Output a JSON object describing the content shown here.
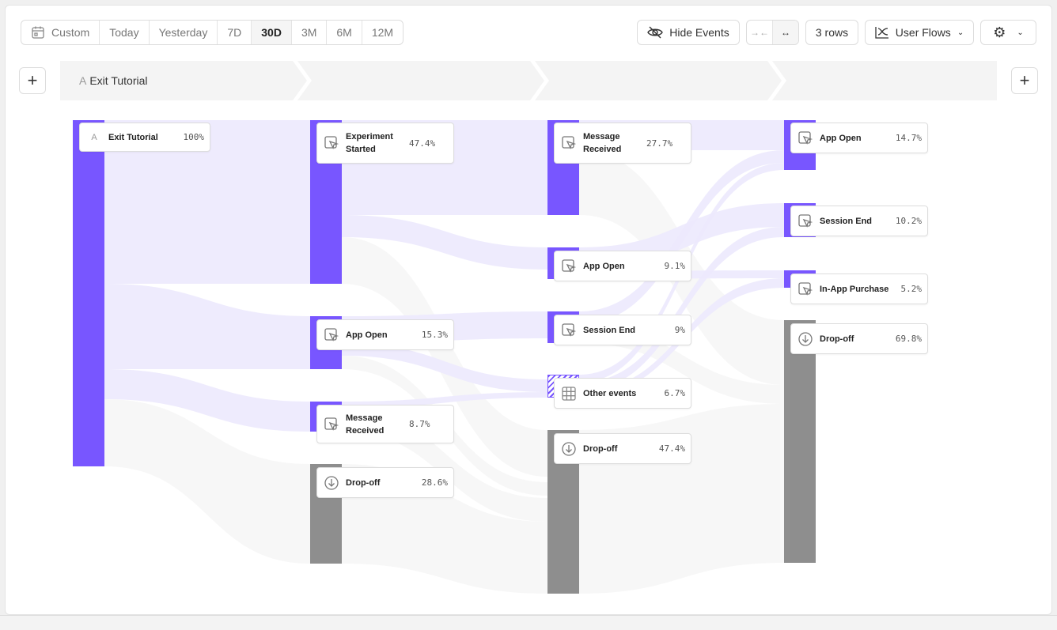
{
  "toolbar": {
    "date_ranges": [
      "Custom",
      "Today",
      "Yesterday",
      "7D",
      "30D",
      "3M",
      "6M",
      "12M"
    ],
    "selected_range": "30D",
    "hide_events": "Hide Events",
    "rows": "3 rows",
    "view": "User Flows"
  },
  "steps": {
    "first_prefix": "A",
    "first": "Exit Tutorial"
  },
  "colors": {
    "accent": "#7856ff",
    "dropoff": "#8e8e8e",
    "flow": "#ece9fd"
  },
  "columns": [
    [
      {
        "name": "Exit Tutorial",
        "pct": "100%",
        "icon": "letter-a-icon"
      }
    ],
    [
      {
        "name": "Experiment Started",
        "pct": "47.4%",
        "icon": "cursor-click-icon"
      },
      {
        "name": "App Open",
        "pct": "15.3%",
        "icon": "cursor-click-icon"
      },
      {
        "name": "Message Received",
        "pct": "8.7%",
        "icon": "cursor-click-icon"
      },
      {
        "name": "Drop-off",
        "pct": "28.6%",
        "icon": "arrow-down-circle-icon"
      }
    ],
    [
      {
        "name": "Message Received",
        "pct": "27.7%",
        "icon": "cursor-click-icon"
      },
      {
        "name": "App Open",
        "pct": "9.1%",
        "icon": "cursor-click-icon"
      },
      {
        "name": "Session End",
        "pct": "9%",
        "icon": "cursor-click-icon"
      },
      {
        "name": "Other events",
        "pct": "6.7%",
        "icon": "grid-icon"
      },
      {
        "name": "Drop-off",
        "pct": "47.4%",
        "icon": "arrow-down-circle-icon"
      }
    ],
    [
      {
        "name": "App Open",
        "pct": "14.7%",
        "icon": "cursor-click-icon"
      },
      {
        "name": "Session End",
        "pct": "10.2%",
        "icon": "cursor-click-icon"
      },
      {
        "name": "In-App Purchase",
        "pct": "5.2%",
        "icon": "cursor-click-icon"
      },
      {
        "name": "Drop-off",
        "pct": "69.8%",
        "icon": "arrow-down-circle-icon"
      }
    ]
  ]
}
